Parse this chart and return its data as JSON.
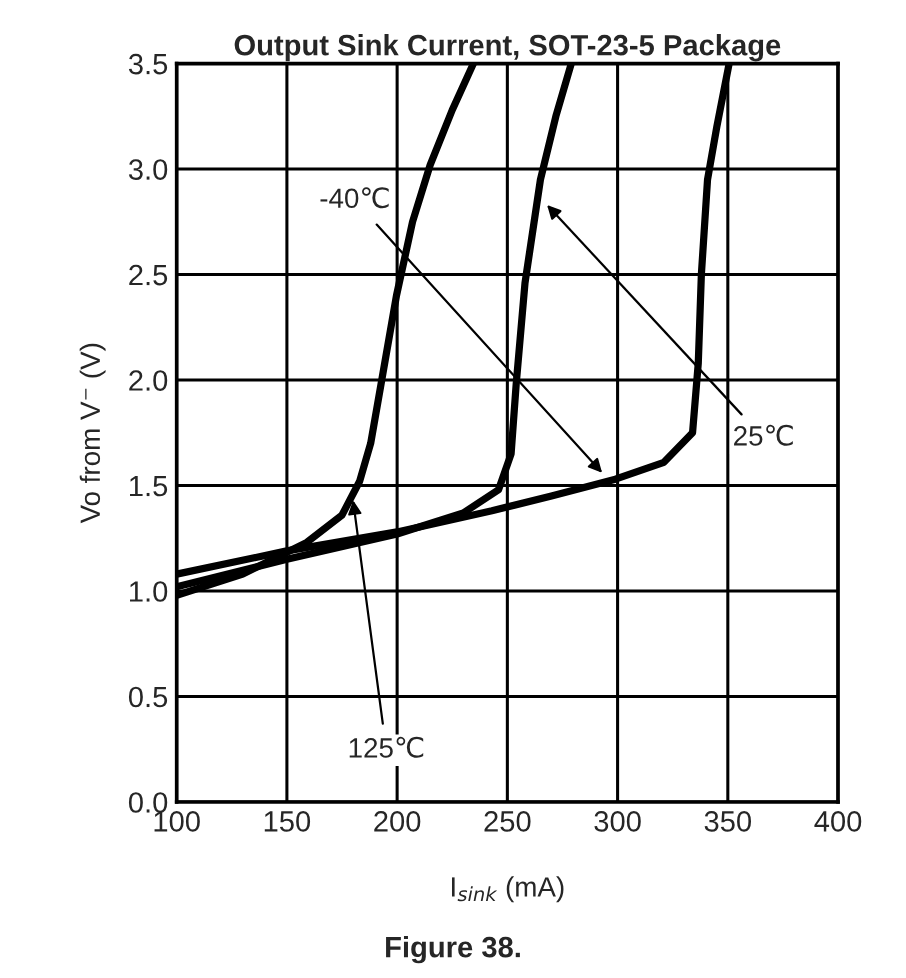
{
  "chart_data": {
    "type": "line",
    "title": "Output Sink Current, SOT-23-5 Package",
    "xlabel": "I$_{sink}$ (mA)",
    "ylabel": "Vo from V⁻ (V)",
    "series": [
      {
        "color": "#000000",
        "x": [
          100,
          150,
          200,
          243,
          270,
          299,
          321,
          334,
          336.6,
          338,
          340.8,
          345,
          350.6
        ],
        "values": [
          1.08,
          1.19,
          1.28,
          1.38,
          1.45,
          1.53,
          1.61,
          1.75,
          2.08,
          2.5,
          2.95,
          3.2,
          3.5
        ]
      },
      {
        "color": "#000000",
        "x": [
          100,
          150,
          200,
          230,
          246,
          251.7,
          254,
          258,
          265,
          272,
          279
        ],
        "values": [
          1.02,
          1.15,
          1.27,
          1.37,
          1.48,
          1.65,
          1.98,
          2.46,
          2.95,
          3.25,
          3.5
        ]
      },
      {
        "color": "#000000",
        "x": [
          100,
          130,
          159,
          175,
          183,
          188,
          192.7,
          199.7,
          207,
          215,
          225,
          234.6
        ],
        "values": [
          0.98,
          1.08,
          1.23,
          1.36,
          1.52,
          1.7,
          1.98,
          2.4,
          2.75,
          3.02,
          3.28,
          3.5
        ]
      }
    ],
    "xlim": [
      100,
      400
    ],
    "ylim": [
      0,
      3.5
    ],
    "xticks": [
      100,
      150,
      200,
      250,
      300,
      350,
      400
    ],
    "yticks": [
      {
        "value": 0,
        "label": "0.0"
      },
      {
        "value": 0.5,
        "label": "0.5"
      },
      {
        "value": 1,
        "label": "1.0"
      },
      {
        "value": 1.5,
        "label": "1.5"
      },
      {
        "value": 2,
        "label": "2.0"
      },
      {
        "value": 2.5,
        "label": "2.5"
      },
      {
        "value": 3,
        "label": "3.0"
      },
      {
        "value": 3.5,
        "label": "3.5"
      }
    ],
    "grid": true,
    "legend": false,
    "annotations": [
      {
        "text": "-40℃",
        "x": 293,
        "y": 1.56
      },
      {
        "text": "25℃",
        "x": 268,
        "y": 2.83
      },
      {
        "text": "125℃",
        "x": 180,
        "y": 1.43
      },
      "Figure 38."
    ]
  }
}
